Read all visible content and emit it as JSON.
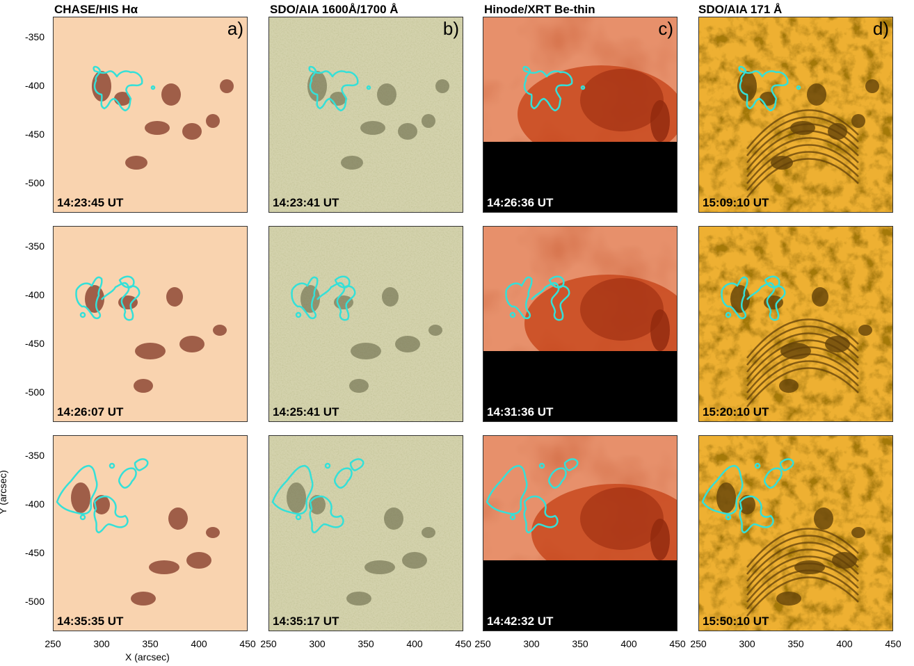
{
  "columns": [
    {
      "title": "CHASE/HIS Hα",
      "panel_label": "a)"
    },
    {
      "title": "SDO/AIA 1600Å/1700 Å",
      "panel_label": "b)"
    },
    {
      "title": "Hinode/XRT Be-thin",
      "panel_label": "c)"
    },
    {
      "title": "SDO/AIA 171 Å",
      "panel_label": "d)"
    }
  ],
  "timestamps": [
    [
      "14:23:45 UT",
      "14:23:41 UT",
      "14:26:36 UT",
      "15:09:10 UT"
    ],
    [
      "14:26:07 UT",
      "14:25:41 UT",
      "14:31:36 UT",
      "15:20:10 UT"
    ],
    [
      "14:35:35 UT",
      "14:35:17 UT",
      "14:42:32 UT",
      "15:50:10 UT"
    ]
  ],
  "axes": {
    "ylabel": "Y (arcsec)",
    "xlabel": "X (arcsec)",
    "yticks": [
      "-350",
      "-400",
      "-450",
      "-500"
    ],
    "xticks_first": [
      "250",
      "300",
      "350",
      "400",
      "450"
    ],
    "xticks_other": [
      "250",
      "300",
      "350",
      "400",
      "450"
    ]
  },
  "colors": {
    "halpha": "#f2b07a",
    "aia1600": "#c9c89f",
    "xrt": "#d9502a",
    "aia171": "#e8a520",
    "contour": "#34e0d8"
  }
}
